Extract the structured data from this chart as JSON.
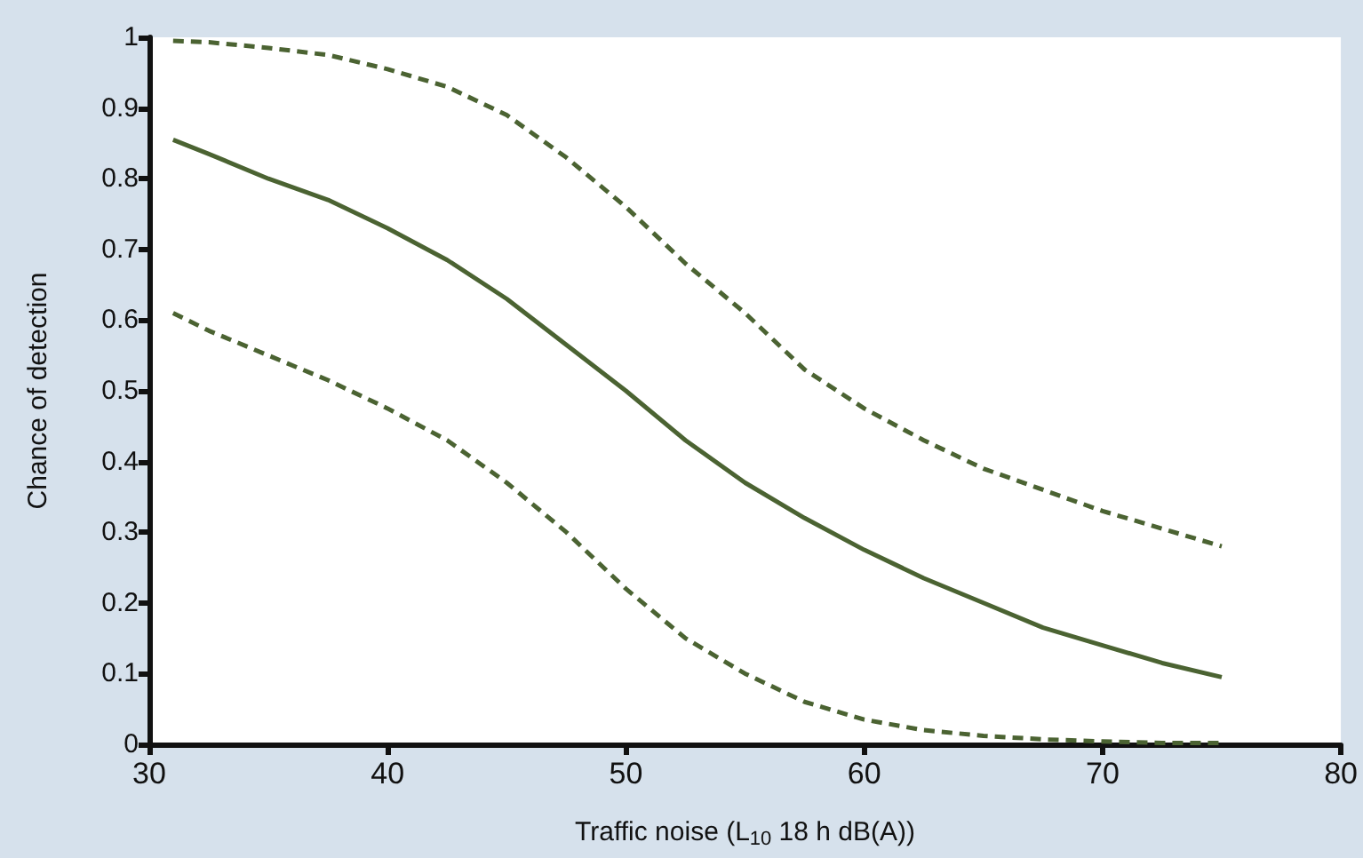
{
  "chart_data": {
    "type": "line",
    "xlabel": "Traffic noise (L$_{10}$ 18 h dB(A))",
    "ylabel": "Chance of detection",
    "x": [
      31,
      32.5,
      35,
      37.5,
      40,
      42.5,
      45,
      47.5,
      50,
      52.5,
      55,
      57.5,
      60,
      62.5,
      65,
      67.5,
      70,
      72.5,
      75
    ],
    "series": [
      {
        "color": "#4b6332",
        "line_style": "solid",
        "values": [
          0.855,
          0.835,
          0.8,
          0.77,
          0.73,
          0.685,
          0.63,
          0.565,
          0.5,
          0.43,
          0.37,
          0.32,
          0.275,
          0.235,
          0.2,
          0.165,
          0.14,
          0.115,
          0.095
        ]
      },
      {
        "color": "#4b6332",
        "line_style": "dashed",
        "values": [
          0.995,
          0.993,
          0.985,
          0.975,
          0.955,
          0.93,
          0.89,
          0.83,
          0.76,
          0.68,
          0.61,
          0.53,
          0.475,
          0.43,
          0.39,
          0.36,
          0.33,
          0.305,
          0.28
        ]
      },
      {
        "color": "#4b6332",
        "line_style": "dashed",
        "values": [
          0.61,
          0.585,
          0.55,
          0.515,
          0.475,
          0.43,
          0.37,
          0.3,
          0.22,
          0.15,
          0.1,
          0.06,
          0.035,
          0.02,
          0.012,
          0.007,
          0.004,
          0.002,
          0.002
        ]
      }
    ],
    "xlim": [
      30,
      80
    ],
    "xticks": [
      30,
      40,
      50,
      60,
      70,
      80
    ],
    "ylim": [
      0,
      1
    ],
    "yticks": [
      0,
      0.1,
      0.2,
      0.3,
      0.4,
      0.5,
      0.6,
      0.7,
      0.8,
      0.9,
      1
    ],
    "grid": false,
    "marker": "none"
  }
}
